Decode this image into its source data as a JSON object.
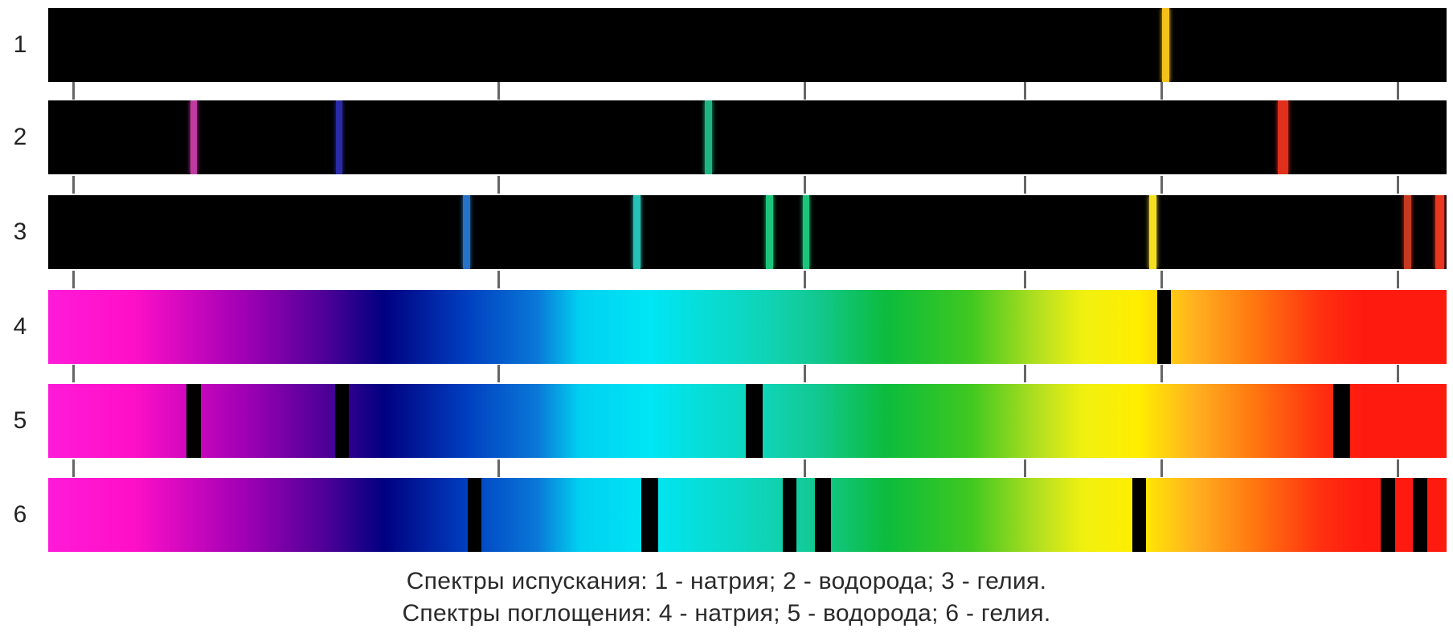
{
  "rows": [
    {
      "label": "1",
      "kind": "emission",
      "lines": [
        {
          "pos": 0.799,
          "color": "#f2c21a",
          "w": 0.005
        }
      ]
    },
    {
      "label": "2",
      "kind": "emission",
      "lines": [
        {
          "pos": 0.104,
          "color": "#c03aa0",
          "w": 0.005
        },
        {
          "pos": 0.208,
          "color": "#2a2aa8",
          "w": 0.005
        },
        {
          "pos": 0.472,
          "color": "#1fb583",
          "w": 0.005
        },
        {
          "pos": 0.883,
          "color": "#e0301c",
          "w": 0.007
        }
      ]
    },
    {
      "label": "3",
      "kind": "emission",
      "lines": [
        {
          "pos": 0.299,
          "color": "#2672c6",
          "w": 0.005
        },
        {
          "pos": 0.421,
          "color": "#25c3b7",
          "w": 0.005
        },
        {
          "pos": 0.516,
          "color": "#1cc57c",
          "w": 0.005
        },
        {
          "pos": 0.542,
          "color": "#1cc57c",
          "w": 0.005
        },
        {
          "pos": 0.79,
          "color": "#f4df22",
          "w": 0.005
        },
        {
          "pos": 0.972,
          "color": "#c63a22",
          "w": 0.005
        },
        {
          "pos": 0.995,
          "color": "#e83620",
          "w": 0.006
        }
      ]
    },
    {
      "label": "4",
      "kind": "absorption",
      "lines": [
        {
          "pos": 0.798,
          "color": "#000000",
          "w": 0.01
        }
      ]
    },
    {
      "label": "5",
      "kind": "absorption",
      "lines": [
        {
          "pos": 0.104,
          "color": "#000000",
          "w": 0.01
        },
        {
          "pos": 0.21,
          "color": "#000000",
          "w": 0.01
        },
        {
          "pos": 0.505,
          "color": "#000000",
          "w": 0.012
        },
        {
          "pos": 0.925,
          "color": "#000000",
          "w": 0.012
        }
      ]
    },
    {
      "label": "6",
      "kind": "absorption",
      "lines": [
        {
          "pos": 0.305,
          "color": "#000000",
          "w": 0.01
        },
        {
          "pos": 0.43,
          "color": "#000000",
          "w": 0.012
        },
        {
          "pos": 0.53,
          "color": "#000000",
          "w": 0.01
        },
        {
          "pos": 0.554,
          "color": "#000000",
          "w": 0.012
        },
        {
          "pos": 0.78,
          "color": "#000000",
          "w": 0.01
        },
        {
          "pos": 0.958,
          "color": "#000000",
          "w": 0.01
        },
        {
          "pos": 0.981,
          "color": "#000000",
          "w": 0.01
        }
      ]
    }
  ],
  "ticks": [
    0.018,
    0.322,
    0.541,
    0.698,
    0.796,
    0.965
  ],
  "caption": {
    "line1": "Спектры испускания: 1 - натрия; 2 - водорода; 3 - гелия.",
    "line2": "Спектры поглощения: 4 - натрия; 5 - водорода; 6 - гелия."
  }
}
